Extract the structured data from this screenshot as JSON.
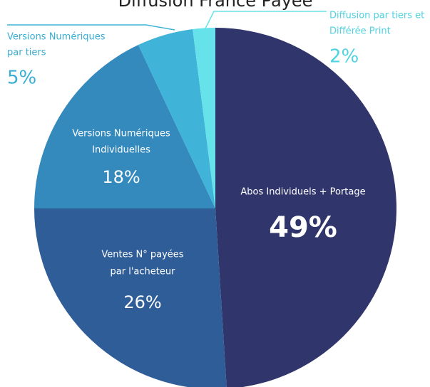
{
  "chart_data": {
    "type": "pie",
    "title": "Diffusion France Payée",
    "categories": [
      [
        "Abos Individuels + Portage"
      ],
      [
        "Ventes N° payées",
        "par l'acheteur"
      ],
      [
        "Versions Numériques",
        "Individuelles"
      ],
      [
        "Versions Numériques",
        "par tiers"
      ],
      [
        "Diffusion par tiers et",
        "Différée Print"
      ]
    ],
    "values": [
      49,
      26,
      18,
      5,
      2
    ],
    "value_labels": [
      "49%",
      "26%",
      "18%",
      "5%",
      "2%"
    ],
    "colors": [
      "#30356b",
      "#2f5d98",
      "#3489bd",
      "#40b4d8",
      "#66e2ea"
    ]
  }
}
